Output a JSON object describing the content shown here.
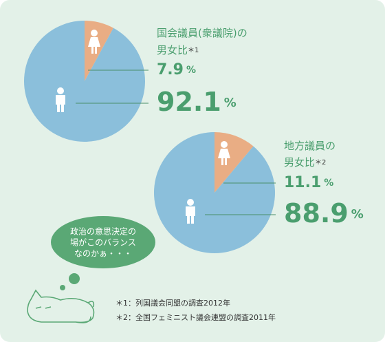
{
  "chart_data": [
    {
      "type": "pie",
      "title": [
        "国会議員(衆議院)の",
        "男女比"
      ],
      "note": "＊1",
      "values": [
        7.9,
        92.1
      ],
      "unit": "%",
      "colors": [
        "#e9ad84",
        "#8bbfdb"
      ]
    },
    {
      "type": "pie",
      "title": [
        "地方議員の",
        "男女比"
      ],
      "note": "＊2",
      "values": [
        11.1,
        88.9
      ],
      "unit": "%",
      "colors": [
        "#e9ad84",
        "#8bbfdb"
      ]
    }
  ],
  "bubble": [
    "政治の意思決定の",
    "場がこのバランス",
    "なのかぁ・・・"
  ],
  "footnotes": [
    "＊1：列国議会同盟の調査2012年",
    "＊2：全国フェミニスト議会連盟の調査2011年"
  ]
}
